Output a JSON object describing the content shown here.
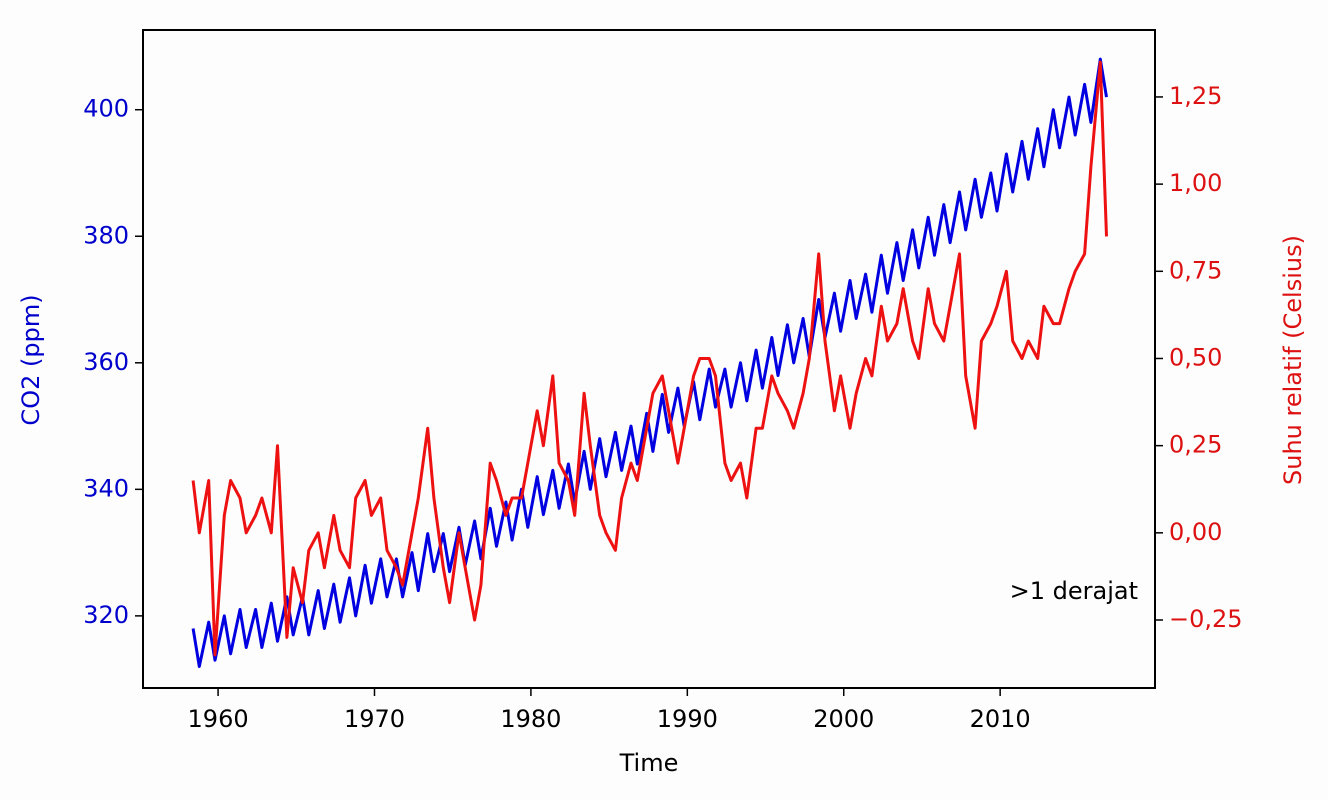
{
  "chart_data": {
    "type": "line",
    "xlabel": "Time",
    "ylabel": "CO2 (ppm)",
    "y2label": "Suhu relatif (Celsius)",
    "annotation": ">1 derajat",
    "x": [
      1958.4,
      1958.8,
      1959.4,
      1959.8,
      1960.4,
      1960.8,
      1961.4,
      1961.8,
      1962.4,
      1962.8,
      1963.4,
      1963.8,
      1964.4,
      1964.8,
      1965.4,
      1965.8,
      1966.4,
      1966.8,
      1967.4,
      1967.8,
      1968.4,
      1968.8,
      1969.4,
      1969.8,
      1970.4,
      1970.8,
      1971.4,
      1971.8,
      1972.4,
      1972.8,
      1973.4,
      1973.8,
      1974.4,
      1974.8,
      1975.4,
      1975.8,
      1976.4,
      1976.8,
      1977.4,
      1977.8,
      1978.4,
      1978.8,
      1979.4,
      1979.8,
      1980.4,
      1980.8,
      1981.4,
      1981.8,
      1982.4,
      1982.8,
      1983.4,
      1983.8,
      1984.4,
      1984.8,
      1985.4,
      1985.8,
      1986.4,
      1986.8,
      1987.4,
      1987.8,
      1988.4,
      1988.8,
      1989.4,
      1989.8,
      1990.4,
      1990.8,
      1991.4,
      1991.8,
      1992.4,
      1992.8,
      1993.4,
      1993.8,
      1994.4,
      1994.8,
      1995.4,
      1995.8,
      1996.4,
      1996.8,
      1997.4,
      1997.8,
      1998.4,
      1998.8,
      1999.4,
      1999.8,
      2000.4,
      2000.8,
      2001.4,
      2001.8,
      2002.4,
      2002.8,
      2003.4,
      2003.8,
      2004.4,
      2004.8,
      2005.4,
      2005.8,
      2006.4,
      2006.8,
      2007.4,
      2007.8,
      2008.4,
      2008.8,
      2009.4,
      2009.8,
      2010.4,
      2010.8,
      2011.4,
      2011.8,
      2012.4,
      2012.8,
      2013.4,
      2013.8,
      2014.4,
      2014.8,
      2015.4,
      2015.8,
      2016.4,
      2016.8
    ],
    "series": [
      {
        "color": "#0000e0",
        "axis": "y",
        "values": [
          318,
          312,
          319,
          313,
          320,
          314,
          321,
          315,
          321,
          315,
          322,
          316,
          323,
          317,
          323,
          317,
          324,
          318,
          325,
          319,
          326,
          320,
          328,
          322,
          329,
          323,
          329,
          323,
          330,
          324,
          333,
          327,
          333,
          327,
          334,
          328,
          335,
          329,
          337,
          331,
          338,
          332,
          340,
          334,
          342,
          336,
          343,
          337,
          344,
          338,
          346,
          340,
          348,
          342,
          349,
          343,
          350,
          344,
          352,
          346,
          355,
          349,
          356,
          350,
          357,
          351,
          359,
          353,
          359,
          353,
          360,
          354,
          362,
          356,
          364,
          358,
          366,
          360,
          367,
          361,
          370,
          364,
          371,
          365,
          373,
          367,
          374,
          368,
          377,
          371,
          379,
          373,
          381,
          375,
          383,
          377,
          385,
          379,
          387,
          381,
          389,
          383,
          390,
          384,
          393,
          387,
          395,
          389,
          397,
          391,
          400,
          394,
          402,
          396,
          404,
          398,
          408,
          402
        ]
      },
      {
        "color": "#ee1111",
        "axis": "y2",
        "values": [
          0.15,
          0.0,
          0.15,
          -0.35,
          0.05,
          0.15,
          0.1,
          0.0,
          0.05,
          0.1,
          0.0,
          0.25,
          -0.3,
          -0.1,
          -0.2,
          -0.05,
          0.0,
          -0.1,
          0.05,
          -0.05,
          -0.1,
          0.1,
          0.15,
          0.05,
          0.1,
          -0.05,
          -0.1,
          -0.15,
          0.0,
          0.1,
          0.3,
          0.1,
          -0.1,
          -0.2,
          0.0,
          -0.1,
          -0.25,
          -0.15,
          0.2,
          0.15,
          0.05,
          0.1,
          0.1,
          0.2,
          0.35,
          0.25,
          0.45,
          0.2,
          0.15,
          0.05,
          0.4,
          0.25,
          0.05,
          0.0,
          -0.05,
          0.1,
          0.2,
          0.15,
          0.3,
          0.4,
          0.45,
          0.35,
          0.2,
          0.3,
          0.45,
          0.5,
          0.5,
          0.45,
          0.2,
          0.15,
          0.2,
          0.1,
          0.3,
          0.3,
          0.45,
          0.4,
          0.35,
          0.3,
          0.4,
          0.5,
          0.8,
          0.55,
          0.35,
          0.45,
          0.3,
          0.4,
          0.5,
          0.45,
          0.65,
          0.55,
          0.6,
          0.7,
          0.55,
          0.5,
          0.7,
          0.6,
          0.55,
          0.65,
          0.8,
          0.45,
          0.3,
          0.55,
          0.6,
          0.65,
          0.75,
          0.55,
          0.5,
          0.55,
          0.5,
          0.65,
          0.6,
          0.6,
          0.7,
          0.75,
          0.8,
          1.05,
          1.35,
          0.85
        ]
      }
    ],
    "xlim": [
      1955.2,
      2019.9
    ],
    "xticks": [
      1960,
      1970,
      1980,
      1990,
      2000,
      2010
    ],
    "ylim": [
      308.6,
      412.6
    ],
    "yticks": [
      320,
      340,
      360,
      380,
      400
    ],
    "y2lim": [
      -0.445,
      1.442
    ],
    "y2ticks": [
      {
        "value": -0.25,
        "label": "−0,25"
      },
      {
        "value": 0,
        "label": "0,00"
      },
      {
        "value": 0.25,
        "label": "0,25"
      },
      {
        "value": 0.5,
        "label": "0,50"
      },
      {
        "value": 0.75,
        "label": "0,75"
      },
      {
        "value": 1,
        "label": "1,00"
      },
      {
        "value": 1.25,
        "label": "1,25"
      }
    ]
  }
}
